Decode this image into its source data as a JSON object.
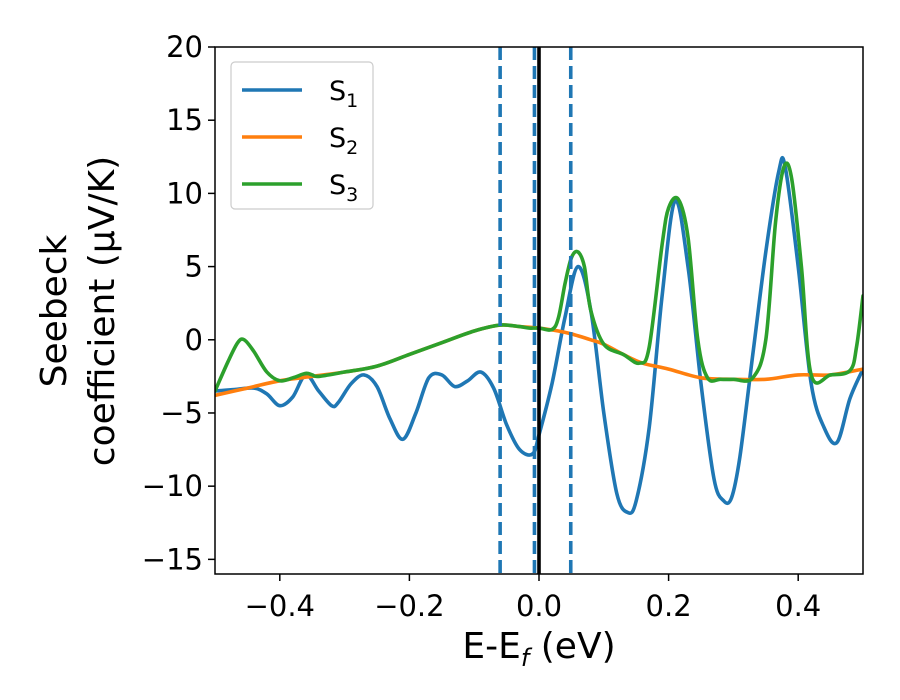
{
  "chart_data": {
    "type": "line",
    "title": "",
    "xlabel": "E-E",
    "xlabel_sub": "f",
    "xlabel_unit": " (eV)",
    "ylabel_line1": "Seebeck",
    "ylabel_line2": "coefficient  (μV/K)",
    "xlim": [
      -0.5,
      0.5
    ],
    "ylim": [
      -16,
      20
    ],
    "xticks": [
      -0.4,
      -0.2,
      0.0,
      0.2,
      0.4
    ],
    "xtick_labels": [
      "−0.4",
      "−0.2",
      "0.0",
      "0.2",
      "0.4"
    ],
    "yticks": [
      -15,
      -10,
      -5,
      0,
      5,
      10,
      15,
      20
    ],
    "ytick_labels": [
      "−15",
      "−10",
      "−5",
      "0",
      "5",
      "10",
      "15",
      "20"
    ],
    "legend_position": "top-left",
    "reference_lines": {
      "solid_vertical": {
        "x": 0.0,
        "color": "#000000"
      },
      "dashed_vertical": {
        "x": [
          -0.06,
          -0.007,
          0.049
        ],
        "color": "#1f77b4"
      }
    },
    "series": [
      {
        "name": "S",
        "sub": "1",
        "color": "#1f77b4",
        "x": [
          -0.5,
          -0.47,
          -0.44,
          -0.42,
          -0.4,
          -0.38,
          -0.36,
          -0.34,
          -0.32,
          -0.31,
          -0.29,
          -0.27,
          -0.25,
          -0.23,
          -0.21,
          -0.19,
          -0.17,
          -0.15,
          -0.13,
          -0.11,
          -0.09,
          -0.07,
          -0.05,
          -0.03,
          -0.01,
          0.0,
          0.02,
          0.04,
          0.06,
          0.08,
          0.1,
          0.12,
          0.137,
          0.15,
          0.17,
          0.19,
          0.21,
          0.23,
          0.25,
          0.27,
          0.285,
          0.297,
          0.31,
          0.33,
          0.35,
          0.37,
          0.38,
          0.4,
          0.42,
          0.44,
          0.46,
          0.48,
          0.5
        ],
        "y": [
          -3.5,
          -3.4,
          -3.3,
          -3.7,
          -4.5,
          -3.9,
          -2.4,
          -3.5,
          -4.5,
          -4.3,
          -3.0,
          -2.4,
          -3.2,
          -5.4,
          -6.8,
          -5.0,
          -2.6,
          -2.4,
          -3.2,
          -2.8,
          -2.2,
          -3.3,
          -5.8,
          -7.5,
          -7.8,
          -6.5,
          -3.0,
          1.5,
          5.0,
          2.0,
          -5.0,
          -10.5,
          -11.8,
          -11.0,
          -6.0,
          3.0,
          9.5,
          5.0,
          -3.0,
          -9.5,
          -11.0,
          -10.8,
          -8.0,
          -1.0,
          6.0,
          11.5,
          11.8,
          5.0,
          -3.0,
          -6.0,
          -7.0,
          -4.0,
          -2.0
        ]
      },
      {
        "name": "S",
        "sub": "2",
        "color": "#ff7f0e",
        "x": [
          -0.5,
          -0.45,
          -0.4,
          -0.35,
          -0.3,
          -0.25,
          -0.2,
          -0.15,
          -0.1,
          -0.06,
          -0.03,
          0.0,
          0.03,
          0.05,
          0.08,
          0.1,
          0.13,
          0.16,
          0.2,
          0.25,
          0.3,
          0.35,
          0.4,
          0.45,
          0.5
        ],
        "y": [
          -3.8,
          -3.3,
          -2.8,
          -2.5,
          -2.2,
          -1.8,
          -1.0,
          -0.2,
          0.6,
          1.0,
          0.9,
          0.8,
          0.6,
          0.4,
          0.0,
          -0.3,
          -1.0,
          -1.6,
          -2.0,
          -2.6,
          -2.7,
          -2.7,
          -2.4,
          -2.4,
          -2.0
        ]
      },
      {
        "name": "S",
        "sub": "3",
        "color": "#2ca02c",
        "x": [
          -0.5,
          -0.48,
          -0.465,
          -0.455,
          -0.44,
          -0.42,
          -0.4,
          -0.38,
          -0.36,
          -0.35,
          -0.34,
          -0.3,
          -0.25,
          -0.2,
          -0.15,
          -0.1,
          -0.06,
          -0.03,
          -0.015,
          0.0,
          0.02,
          0.03,
          0.04,
          0.05,
          0.06,
          0.07,
          0.08,
          0.1,
          0.13,
          0.155,
          0.17,
          0.19,
          0.2,
          0.215,
          0.23,
          0.245,
          0.26,
          0.28,
          0.3,
          0.33,
          0.35,
          0.365,
          0.378,
          0.39,
          0.405,
          0.42,
          0.45,
          0.48,
          0.49,
          0.5
        ],
        "y": [
          -3.5,
          -1.5,
          -0.2,
          0.0,
          -0.8,
          -2.2,
          -2.8,
          -2.6,
          -2.3,
          -2.4,
          -2.5,
          -2.2,
          -1.8,
          -1.0,
          -0.2,
          0.6,
          1.0,
          0.9,
          0.8,
          0.8,
          0.7,
          1.5,
          3.8,
          5.6,
          6.0,
          5.0,
          2.0,
          -0.3,
          -1.0,
          -1.6,
          -0.5,
          6.5,
          9.0,
          9.6,
          7.0,
          0.0,
          -2.6,
          -2.7,
          -2.7,
          -2.6,
          0.0,
          8.0,
          11.8,
          11.0,
          5.0,
          -2.4,
          -2.4,
          -2.1,
          -0.5,
          3.0
        ]
      }
    ]
  }
}
